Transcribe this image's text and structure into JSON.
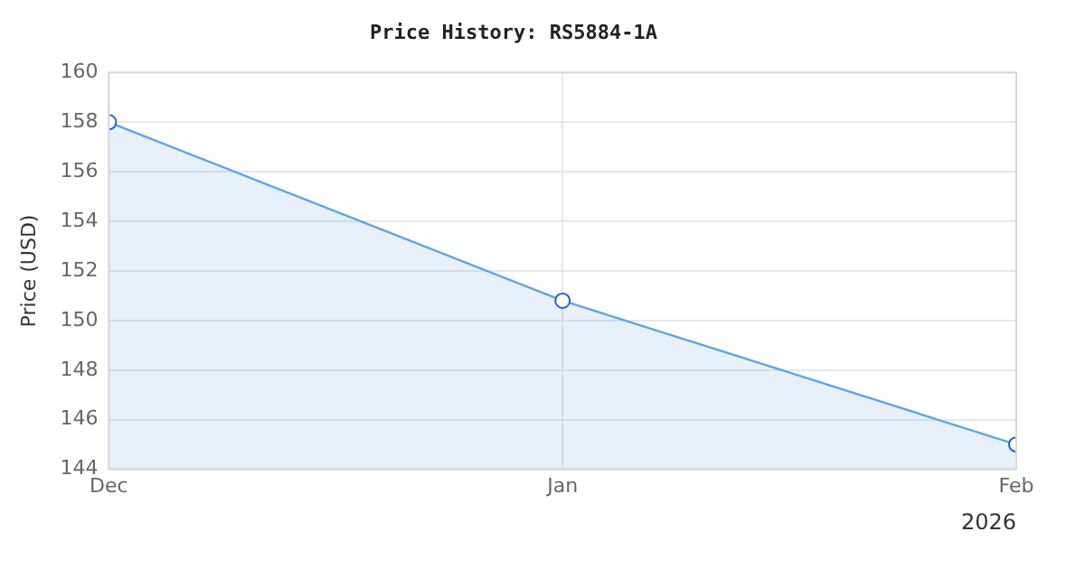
{
  "chart_data": {
    "type": "area",
    "title": "Price History: RS5884-1A",
    "ylabel": "Price (USD)",
    "x": [
      "2025-12",
      "2026-01",
      "2026-02"
    ],
    "xlim": [
      "2025-12",
      "2026-02"
    ],
    "xticks": [
      {
        "value": "2025-12",
        "label": "Dec"
      },
      {
        "value": "2026-01",
        "label": "Jan"
      },
      {
        "value": "2026-02",
        "label": "Feb"
      }
    ],
    "ylim": [
      144,
      160
    ],
    "yticks": [
      144,
      146,
      148,
      150,
      152,
      154,
      156,
      158,
      160
    ],
    "series": [
      {
        "color": "#5ba3ec",
        "values": [
          158.0,
          150.8,
          145.0
        ]
      }
    ],
    "annotations": [
      "2026"
    ],
    "grid": true,
    "legend": false,
    "marker": "circle",
    "line_style": "solid"
  }
}
